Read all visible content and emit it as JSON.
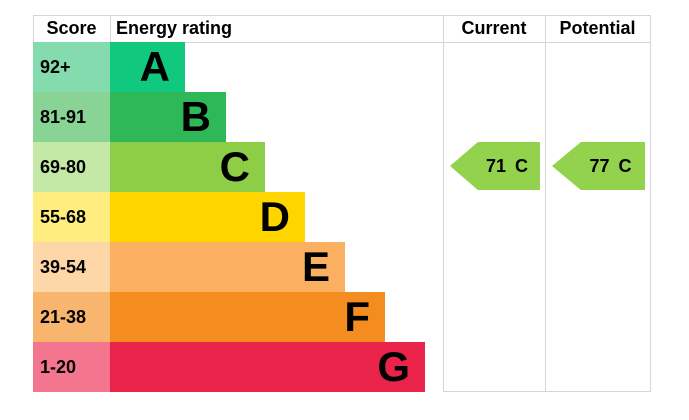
{
  "header": {
    "score": "Score",
    "energy_rating": "Energy rating",
    "current": "Current",
    "potential": "Potential"
  },
  "chart_data": {
    "type": "bar",
    "title": "Energy rating",
    "orientation": "horizontal",
    "columns": [
      "Score",
      "Energy rating",
      "Current",
      "Potential"
    ],
    "categories": [
      "92+",
      "81-91",
      "69-80",
      "55-68",
      "39-54",
      "21-38",
      "1-20"
    ],
    "bands": [
      {
        "grade": "A",
        "score_range": "92+",
        "bar_color": "#10c87e",
        "score_bg": "#84dcae"
      },
      {
        "grade": "B",
        "score_range": "81-91",
        "bar_color": "#2eb858",
        "score_bg": "#89d394"
      },
      {
        "grade": "C",
        "score_range": "69-80",
        "bar_color": "#8dce46",
        "score_bg": "#c4e9a6"
      },
      {
        "grade": "D",
        "score_range": "55-68",
        "bar_color": "#ffd500",
        "score_bg": "#ffee7f"
      },
      {
        "grade": "E",
        "score_range": "39-54",
        "bar_color": "#fbaf60",
        "score_bg": "#fed7a9"
      },
      {
        "grade": "F",
        "score_range": "21-38",
        "bar_color": "#f58c20",
        "score_bg": "#f8b56d"
      },
      {
        "grade": "G",
        "score_range": "1-20",
        "bar_color": "#e9234a",
        "score_bg": "#f4758e"
      }
    ],
    "current": {
      "value": "71",
      "grade": "C",
      "arrow_color": "#93d24c"
    },
    "potential": {
      "value": "77",
      "grade": "C",
      "arrow_color": "#93d24c"
    },
    "grid": "column separators only",
    "legend_position": "none"
  }
}
